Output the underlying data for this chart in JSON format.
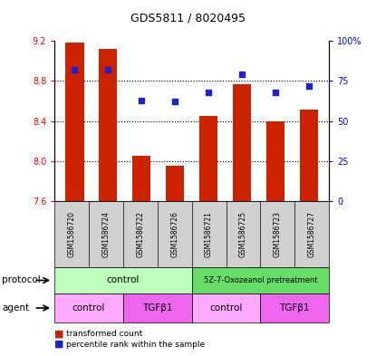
{
  "title": "GDS5811 / 8020495",
  "samples": [
    "GSM1586720",
    "GSM1586724",
    "GSM1586722",
    "GSM1586726",
    "GSM1586721",
    "GSM1586725",
    "GSM1586723",
    "GSM1586727"
  ],
  "bar_values": [
    9.18,
    9.12,
    8.05,
    7.95,
    8.45,
    8.77,
    8.4,
    8.51
  ],
  "dot_values": [
    82,
    82,
    63,
    62,
    68,
    79,
    68,
    72
  ],
  "bar_bottom": 7.6,
  "ylim_left": [
    7.6,
    9.2
  ],
  "ylim_right": [
    0,
    100
  ],
  "yticks_left": [
    7.6,
    8.0,
    8.4,
    8.8,
    9.2
  ],
  "yticks_right": [
    0,
    25,
    50,
    75,
    100
  ],
  "ytick_labels_right": [
    "0",
    "25",
    "50",
    "75",
    "100%"
  ],
  "bar_color": "#cc2200",
  "dot_color": "#2222cc",
  "sample_bg": "#d0d0d0",
  "proto_control_color": "#bbffbb",
  "proto_treatment_color": "#66dd66",
  "agent_control_color": "#ffaaff",
  "agent_tgf_color": "#ee66ee",
  "grid_color": "black",
  "grid_style": "dotted",
  "grid_ticks": [
    8.0,
    8.4,
    8.8
  ]
}
